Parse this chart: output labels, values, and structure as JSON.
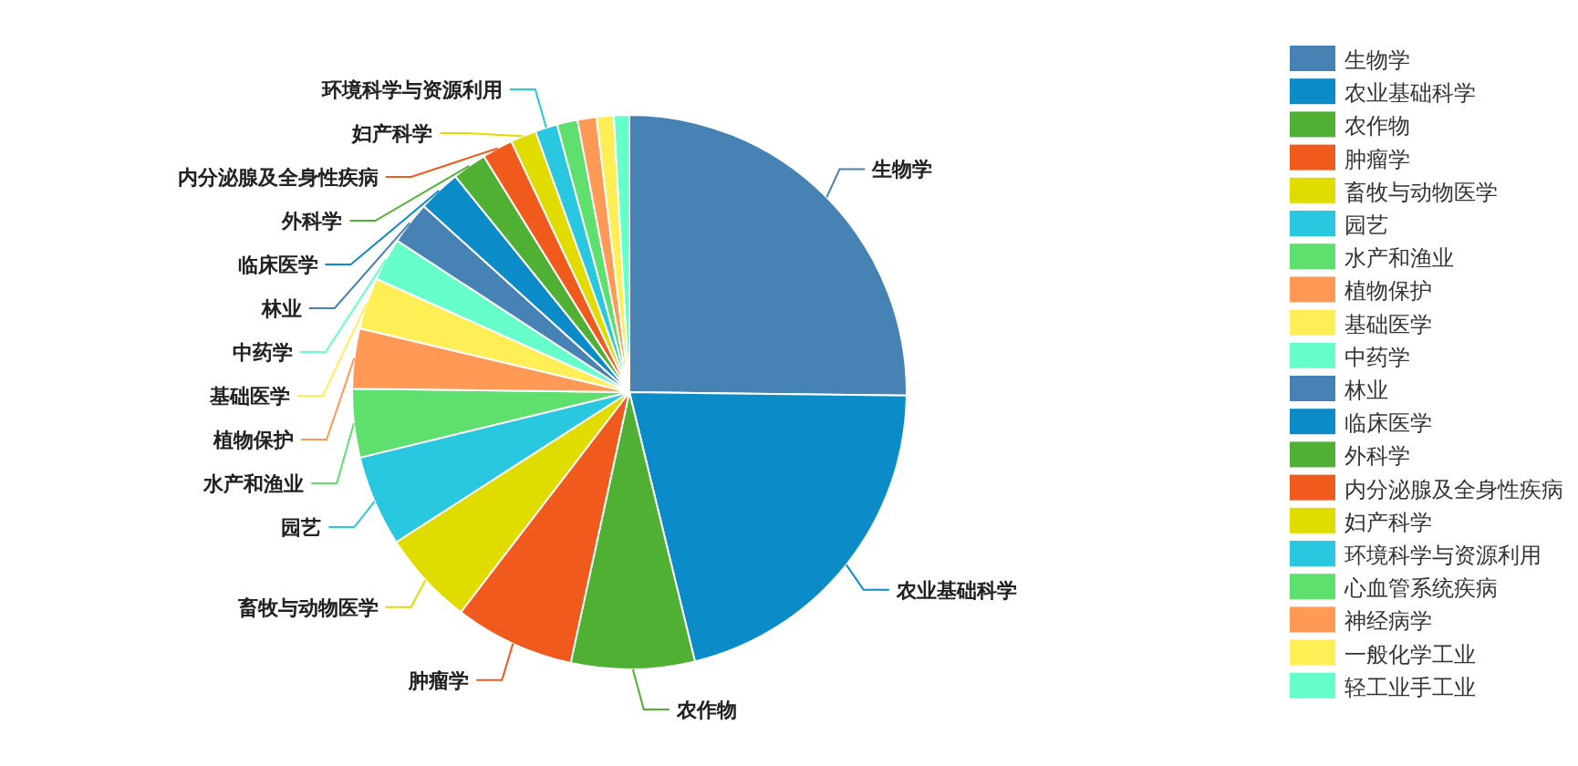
{
  "chart_data": {
    "type": "pie",
    "legend": "right",
    "categories": [
      "生物学",
      "农业基础科学",
      "农作物",
      "肿瘤学",
      "畜牧与动物医学",
      "园艺",
      "水产和渔业",
      "植物保护",
      "基础医学",
      "中药学",
      "林业",
      "临床医学",
      "外科学",
      "内分泌腺及全身性疾病",
      "妇产科学",
      "环境科学与资源利用",
      "心血管系统疾病",
      "神经病学",
      "一般化学工业",
      "轻工业手工业"
    ],
    "values": [
      25.2,
      21,
      7.2,
      7,
      5.5,
      5.3,
      4,
      3.5,
      3,
      2.5,
      2.5,
      2.5,
      2,
      1.8,
      1.5,
      1.3,
      1.2,
      1.1,
      1,
      0.9
    ],
    "colors": [
      "#4682b4",
      "#0b8bc8",
      "#4fb033",
      "#f05a1c",
      "#e0dc00",
      "#2ac8e0",
      "#5fe06e",
      "#ff9955",
      "#ffee55",
      "#66ffcc",
      "#4682b4",
      "#0b8bc8",
      "#4fb033",
      "#f05a1c",
      "#e0dc00",
      "#2ac8e0",
      "#5fe06e",
      "#ff9955",
      "#ffee55",
      "#66ffcc"
    ]
  }
}
